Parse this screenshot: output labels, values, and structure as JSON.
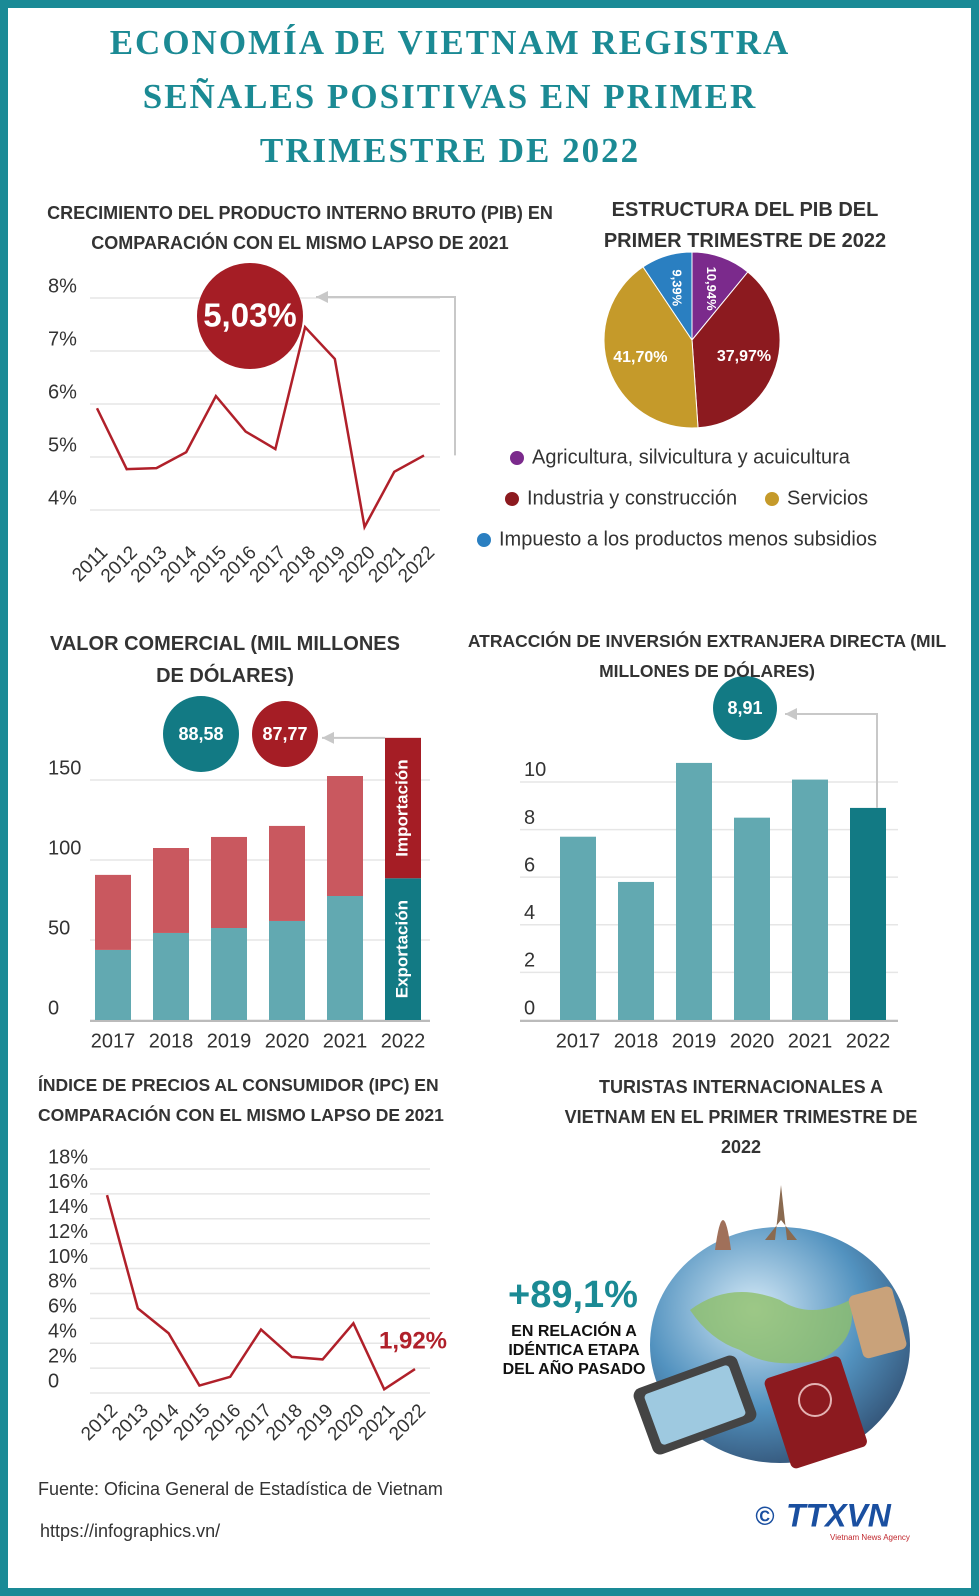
{
  "title": [
    "ECONOMÍA DE VIETNAM REGISTRA",
    "SEÑALES POSITIVAS EN PRIMER",
    "TRIMESTRE DE 2022"
  ],
  "chart_data": [
    {
      "type": "line",
      "title": "CRECIMIENTO DEL PRODUCTO INTERNO BRUTO (PIB) EN COMPARACIÓN CON EL MISMO LAPSO DE 2021",
      "categories": [
        "2011",
        "2012",
        "2013",
        "2014",
        "2015",
        "2016",
        "2017",
        "2018",
        "2019",
        "2020",
        "2021",
        "2022"
      ],
      "values": [
        5.92,
        4.77,
        4.79,
        5.09,
        6.15,
        5.48,
        5.15,
        7.45,
        6.85,
        3.68,
        4.72,
        5.03
      ],
      "value_labels": [
        null,
        null,
        null,
        null,
        null,
        null,
        null,
        null,
        null,
        null,
        null,
        "5,03%"
      ],
      "color": "#b0202a",
      "ylim": [
        3.5,
        8.2
      ],
      "yticks": [
        {
          "value": 4,
          "label": "4%"
        },
        {
          "value": 5,
          "label": "5%"
        },
        {
          "value": 6,
          "label": "6%"
        },
        {
          "value": 7,
          "label": "7%"
        },
        {
          "value": 8,
          "label": "8%"
        }
      ],
      "grid": true
    },
    {
      "type": "pie",
      "title": "ESTRUCTURA DEL PIB DEL PRIMER TRIMESTRE DE 2022",
      "categories": [
        "Agricultura, silvicultura y acuicultura",
        "Industria y construcción",
        "Servicios",
        "Impuesto a los productos menos subsidios"
      ],
      "values": [
        10.94,
        37.97,
        41.7,
        9.39
      ],
      "value_labels": [
        "10,94%",
        "37,97%",
        "41,70%",
        "9,39%"
      ],
      "colors": [
        "#7b2a8c",
        "#8c1a1f",
        "#c59a2a",
        "#2a7fc1"
      ]
    },
    {
      "type": "bar",
      "stacked": true,
      "title": "VALOR COMERCIAL (MIL MILLONES DE DÓLARES)",
      "categories": [
        "2017",
        "2018",
        "2019",
        "2020",
        "2021",
        "2022"
      ],
      "series": [
        {
          "name": "Exportación",
          "colors": [
            "#62a9b1",
            "#62a9b1",
            "#62a9b1",
            "#62a9b1",
            "#62a9b1",
            "#127a84"
          ],
          "values": [
            43.8,
            54.4,
            57.5,
            61.9,
            77.5,
            88.58
          ],
          "value_labels": [
            null,
            null,
            null,
            null,
            null,
            "88,58"
          ]
        },
        {
          "name": "Importación",
          "colors": [
            "#c9585f",
            "#c9585f",
            "#c9585f",
            "#c9585f",
            "#c9585f",
            "#a51d25"
          ],
          "values": [
            46.9,
            53.1,
            56.9,
            59.4,
            75.0,
            87.77
          ],
          "value_labels": [
            null,
            null,
            null,
            null,
            null,
            "87,77"
          ]
        }
      ],
      "ylim": [
        0,
        180
      ],
      "yticks": [
        0,
        50,
        100,
        150
      ],
      "grid": true
    },
    {
      "type": "bar",
      "title": "ATRACCIÓN DE INVERSIÓN EXTRANJERA DIRECTA (MIL MILLONES DE DÓLARES)",
      "categories": [
        "2017",
        "2018",
        "2019",
        "2020",
        "2021",
        "2022"
      ],
      "values": [
        7.7,
        5.8,
        10.8,
        8.5,
        10.1,
        8.91
      ],
      "value_labels": [
        null,
        null,
        null,
        null,
        null,
        "8,91"
      ],
      "colors": [
        "#62a9b1",
        "#62a9b1",
        "#62a9b1",
        "#62a9b1",
        "#62a9b1",
        "#127a84"
      ],
      "ylim": [
        0,
        11.2
      ],
      "yticks": [
        0,
        2,
        4,
        6,
        8,
        10
      ],
      "grid": true
    },
    {
      "type": "line",
      "title": "ÍNDICE DE PRECIOS AL CONSUMIDOR (IPC) EN COMPARACIÓN CON EL MISMO LAPSO DE 2021",
      "categories": [
        "2012",
        "2013",
        "2014",
        "2015",
        "2016",
        "2017",
        "2018",
        "2019",
        "2020",
        "2021",
        "2022"
      ],
      "values": [
        15.9,
        6.8,
        4.8,
        0.6,
        1.3,
        5.1,
        2.9,
        2.7,
        5.6,
        0.3,
        1.92
      ],
      "value_labels": [
        null,
        null,
        null,
        null,
        null,
        null,
        null,
        null,
        null,
        null,
        "1,92%"
      ],
      "color": "#b0202a",
      "ylim": [
        0,
        18
      ],
      "yticks": [
        0,
        {
          "value": 2,
          "label": "2%"
        },
        {
          "value": 4,
          "label": "4%"
        },
        {
          "value": 6,
          "label": "6%"
        },
        {
          "value": 8,
          "label": "8%"
        },
        {
          "value": 10,
          "label": "10%"
        },
        {
          "value": 12,
          "label": "12%"
        },
        {
          "value": 14,
          "label": "14%"
        },
        {
          "value": 16,
          "label": "16%"
        },
        {
          "value": 18,
          "label": "18%"
        }
      ],
      "grid": true
    }
  ],
  "tourism": {
    "title": "TURISTAS INTERNACIONALES A VIETNAM EN EL PRIMER TRIMESTRE DE 2022",
    "highlight": "+89,1%",
    "note": "EN RELACIÓN A IDÉNTICA ETAPA DEL AÑO PASADO"
  },
  "source": "Fuente: Oficina General de Estadística de Vietnam",
  "url": "https://infographics.vn/",
  "logo": {
    "mark": "©",
    "name": "TTXVN",
    "tagline": "Vietnam News Agency"
  }
}
